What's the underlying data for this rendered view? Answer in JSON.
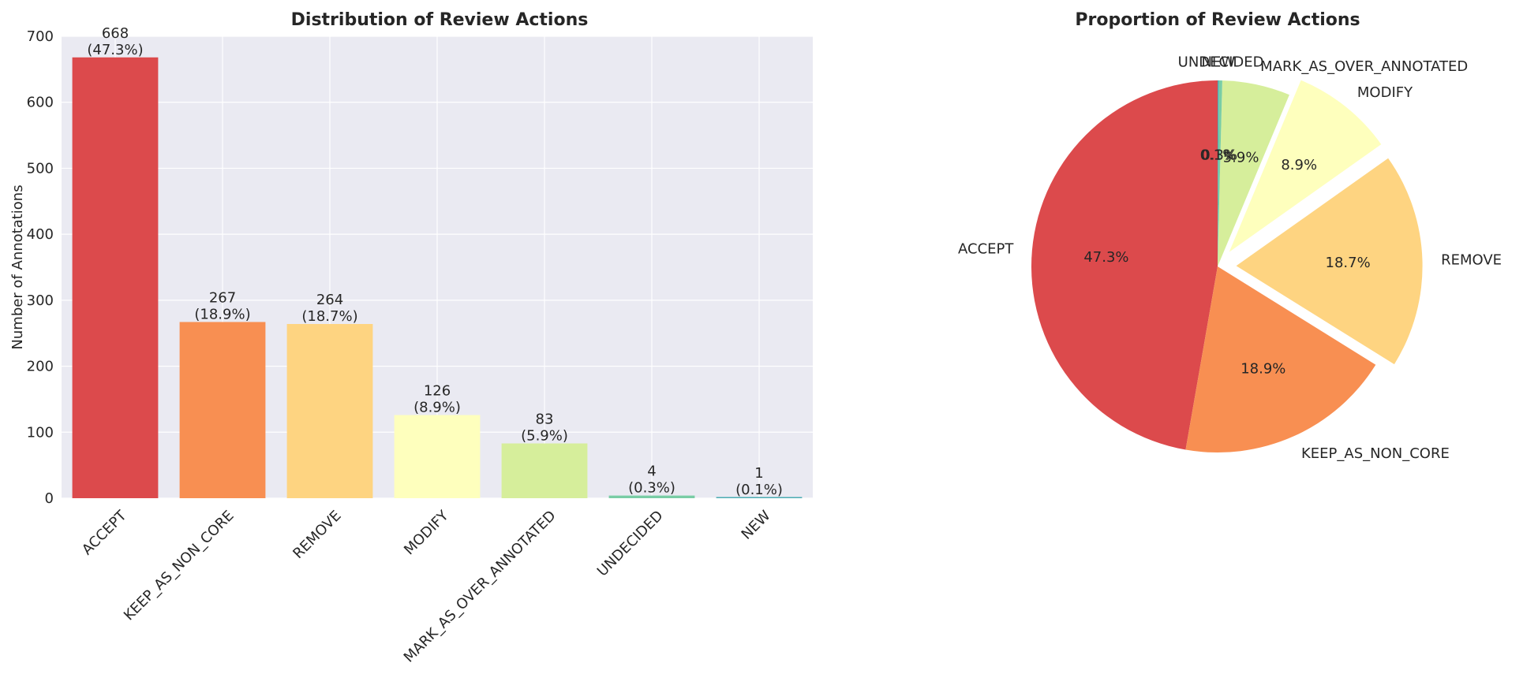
{
  "chart_data": [
    {
      "type": "bar",
      "title": "Distribution of Review Actions",
      "xlabel": "",
      "ylabel": "Number of Annotations",
      "ylim": [
        0,
        700
      ],
      "yticks": [
        "0",
        "100",
        "200",
        "300",
        "400",
        "500",
        "600",
        "700"
      ],
      "grid": true,
      "categories": [
        "ACCEPT",
        "KEEP_AS_NON_CORE",
        "REMOVE",
        "MODIFY",
        "MARK_AS_OVER_ANNOTATED",
        "UNDECIDED",
        "NEW"
      ],
      "values": [
        668,
        267,
        264,
        126,
        83,
        4,
        1
      ],
      "value_labels": [
        "668",
        "267",
        "264",
        "126",
        "83",
        "4",
        "1"
      ],
      "percent_labels": [
        "(47.3%)",
        "(18.9%)",
        "(18.7%)",
        "(8.9%)",
        "(5.9%)",
        "(0.3%)",
        "(0.1%)"
      ],
      "colors": [
        "#dc4a4c",
        "#f88f52",
        "#fed481",
        "#feffbd",
        "#d6ee9b",
        "#79cda5",
        "#4bacb3"
      ]
    },
    {
      "type": "pie",
      "title": "Proportion of Review Actions",
      "labels": [
        "ACCEPT",
        "KEEP_AS_NON_CORE",
        "REMOVE",
        "MODIFY",
        "MARK_AS_OVER_ANNOTATED",
        "UNDECIDED",
        "NEW"
      ],
      "values": [
        47.3,
        18.9,
        18.7,
        8.9,
        5.9,
        0.3,
        0.1
      ],
      "percent_labels": [
        "47.3%",
        "18.9%",
        "18.7%",
        "8.9%",
        "5.9%",
        "0.3%",
        "0.1%"
      ],
      "exploded": [
        false,
        false,
        true,
        true,
        false,
        false,
        false
      ],
      "start_angle_deg": 90,
      "direction": "counterclockwise",
      "colors": [
        "#dc4a4c",
        "#f88f52",
        "#fed481",
        "#feffbd",
        "#d6ee9b",
        "#79cda5",
        "#4bacb3"
      ]
    }
  ]
}
